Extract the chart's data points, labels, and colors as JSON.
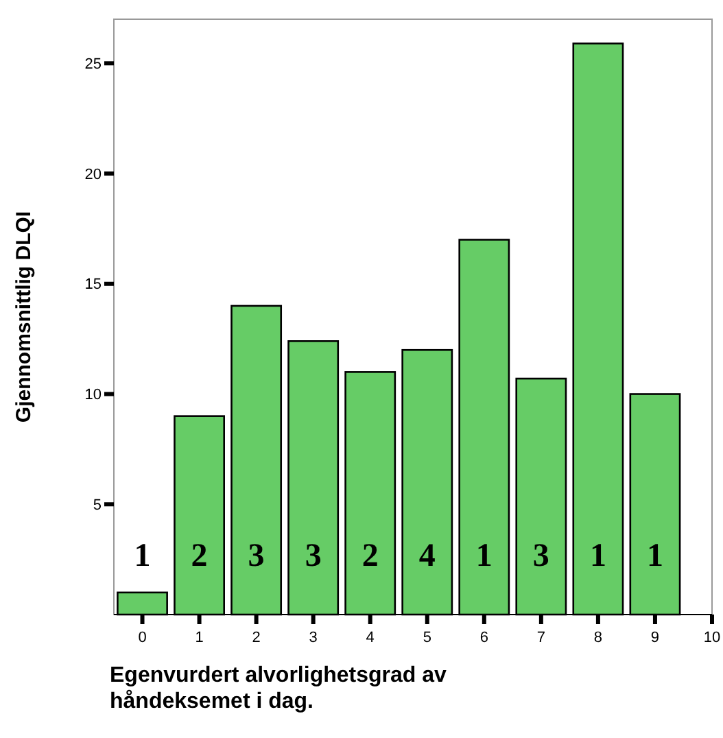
{
  "chart_data": {
    "type": "bar",
    "xlabel": "Egenvurdert alvorlighetsgrad av\nhåndeksemet i dag.",
    "ylabel": "Gjennomsnittlig DLQI",
    "x": [
      0,
      1,
      2,
      3,
      4,
      5,
      6,
      7,
      8,
      9
    ],
    "series": [
      {
        "color": "#66cc66",
        "values": [
          1.0,
          9.0,
          14.0,
          12.4,
          11.0,
          12.0,
          17.0,
          10.7,
          25.9,
          10.0
        ]
      }
    ],
    "xlim": [
      -0.5,
      10
    ],
    "xticks": [
      0,
      1,
      2,
      3,
      4,
      5,
      6,
      7,
      8,
      9,
      10
    ],
    "ylim": [
      0,
      27
    ],
    "yticks": [
      5,
      10,
      15,
      20,
      25
    ],
    "annotations": [
      "1",
      "2",
      "3",
      "3",
      "2",
      "4",
      "1",
      "3",
      "1",
      "1"
    ]
  }
}
